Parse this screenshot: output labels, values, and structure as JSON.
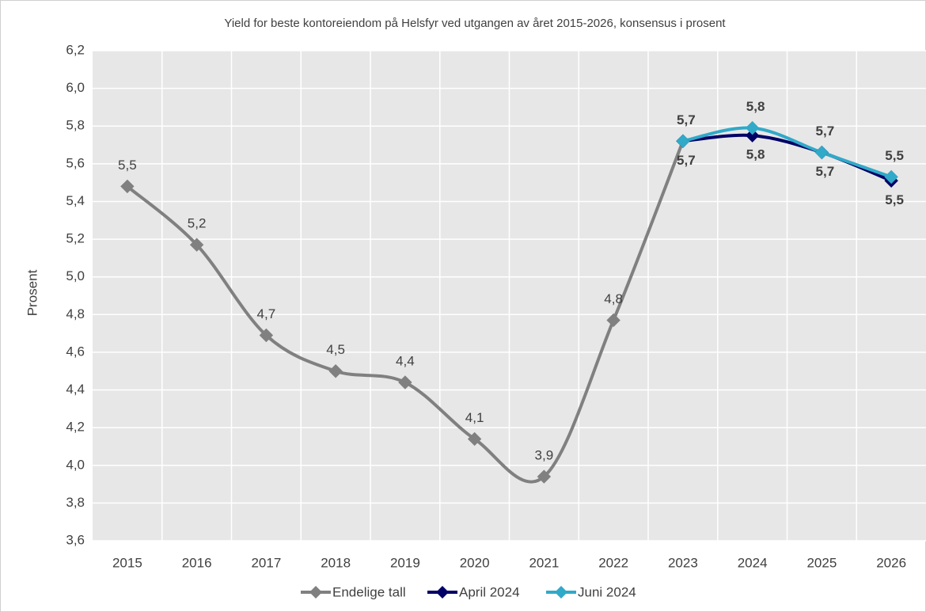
{
  "chart_data": {
    "type": "line",
    "title": "Yield for beste kontoreiendom på Helsfyr ved utgangen av året 2015-2026, konsensus i prosent",
    "ylabel": "Prosent",
    "categories": [
      "2015",
      "2016",
      "2017",
      "2018",
      "2019",
      "2020",
      "2021",
      "2022",
      "2023",
      "2024",
      "2025",
      "2026"
    ],
    "series": [
      {
        "name": "Endelige tall",
        "color": "#808080",
        "values": [
          5.48,
          5.17,
          4.69,
          4.5,
          4.44,
          4.14,
          3.94,
          4.77,
          5.72,
          null,
          null,
          null
        ],
        "value_labels": [
          "5,5",
          "5,2",
          "4,7",
          "4,5",
          "4,4",
          "4,1",
          "3,9",
          "4,8",
          null,
          null,
          null,
          null
        ]
      },
      {
        "name": "April 2024",
        "color": "#000066",
        "values": [
          null,
          null,
          null,
          null,
          null,
          null,
          null,
          null,
          5.72,
          5.75,
          5.66,
          5.51
        ],
        "value_labels": [
          null,
          null,
          null,
          null,
          null,
          null,
          null,
          null,
          "5,7",
          "5,8",
          "5,7",
          "5,5"
        ]
      },
      {
        "name": "Juni 2024",
        "color": "#31a9c8",
        "values": [
          null,
          null,
          null,
          null,
          null,
          null,
          null,
          null,
          5.72,
          5.79,
          5.66,
          5.53
        ],
        "value_labels": [
          null,
          null,
          null,
          null,
          null,
          null,
          null,
          null,
          "5,7",
          "5,8",
          "5,7",
          "5,5"
        ]
      }
    ],
    "ylim": [
      3.6,
      6.2
    ],
    "yticks": [
      {
        "value": 3.6,
        "label": "3,6"
      },
      {
        "value": 3.8,
        "label": "3,8"
      },
      {
        "value": 4.0,
        "label": "4,0"
      },
      {
        "value": 4.2,
        "label": "4,2"
      },
      {
        "value": 4.4,
        "label": "4,4"
      },
      {
        "value": 4.6,
        "label": "4,6"
      },
      {
        "value": 4.8,
        "label": "4,8"
      },
      {
        "value": 5.0,
        "label": "5,0"
      },
      {
        "value": 5.2,
        "label": "5,2"
      },
      {
        "value": 5.4,
        "label": "5,4"
      },
      {
        "value": 5.6,
        "label": "5,6"
      },
      {
        "value": 5.8,
        "label": "5,8"
      },
      {
        "value": 6.0,
        "label": "6,0"
      },
      {
        "value": 6.2,
        "label": "6,2"
      }
    ],
    "grid": true,
    "smooth": true,
    "legend": "bottom"
  }
}
